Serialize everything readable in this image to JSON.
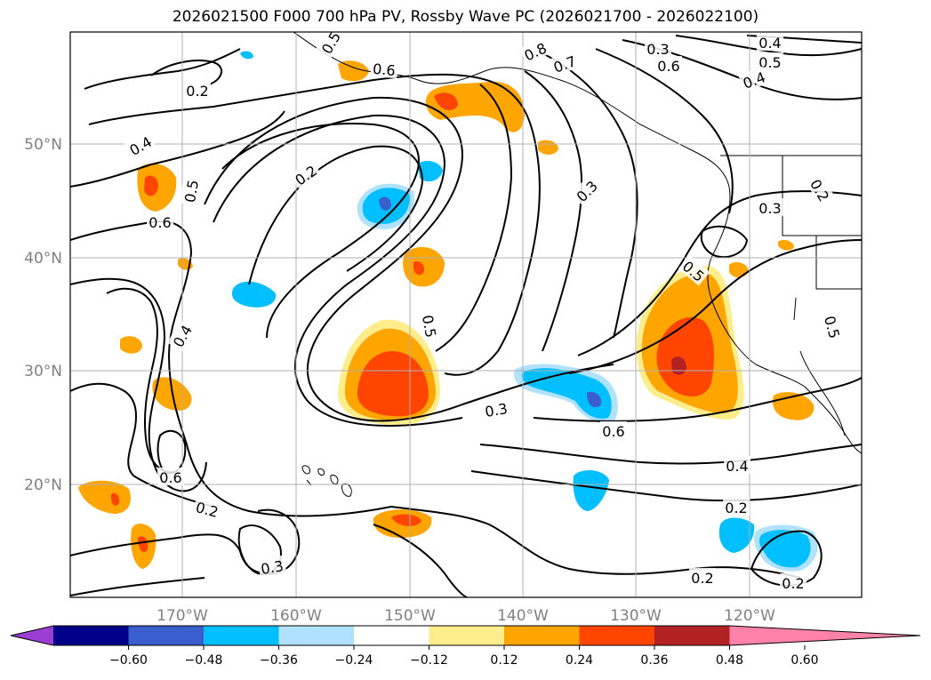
{
  "title": "2026021500 F000 700 hPa PV, Rossby Wave PC (2026021700 - 2026022100)",
  "latitude_labels": [
    "50°N",
    "40°N",
    "30°N",
    "20°N"
  ],
  "longitude_labels": [
    "170°W",
    "160°W",
    "150°W",
    "140°W",
    "130°W",
    "120°W"
  ],
  "contour_labels": [
    "0.5",
    "0.8",
    "0.7",
    "0.3",
    "0.6",
    "0.4",
    "0.6",
    "0.5",
    "0.4",
    "0.2",
    "0.4",
    "0.5",
    "0.2",
    "0.6",
    "0.3",
    "0.3",
    "0.2",
    "0.5",
    "0.5",
    "0.4",
    "0.5",
    "0.6",
    "0.3",
    "0.6",
    "0.4",
    "0.2",
    "0.2",
    "0.3",
    "0.2",
    "0.2"
  ],
  "colorbar": {
    "ticks": [
      "−0.60",
      "−0.48",
      "−0.36",
      "−0.24",
      "−0.12",
      "0.12",
      "0.24",
      "0.36",
      "0.48",
      "0.60"
    ],
    "colors": [
      "#9a3fd1",
      "#00008b",
      "#3a5fcd",
      "#00bfff",
      "#b0e2ff",
      "#ffffff",
      "#ffec8b",
      "#ffa500",
      "#ff4500",
      "#b22222",
      "#ff82ab"
    ]
  },
  "fill_colors": {
    "light_yellow": "#ffec8b",
    "orange": "#ffa500",
    "red_orange": "#ff4500",
    "dark_red": "#b22222",
    "light_blue": "#b0e2ff",
    "blue": "#00bfff",
    "mid_blue": "#3a5fcd"
  }
}
